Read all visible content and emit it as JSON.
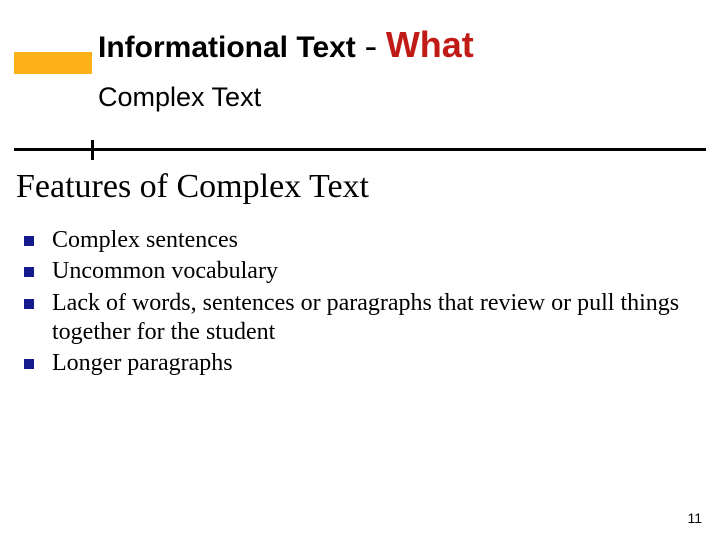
{
  "colors": {
    "accent": "#fbb117",
    "highlight": "#c11b17",
    "bullet": "#151b8d",
    "text": "#000000",
    "background": "#ffffff",
    "divider": "#000000"
  },
  "title": {
    "main": "Informational Text",
    "dash": " - ",
    "highlight": "What",
    "main_fontsize": 30,
    "highlight_fontsize": 36,
    "subtitle": "Complex Text",
    "subtitle_fontsize": 27
  },
  "heading": {
    "text": "Features of Complex Text",
    "fontsize": 34
  },
  "bullets": {
    "marker_size": 10,
    "fontsize": 24,
    "items": [
      "Complex sentences",
      "Uncommon vocabulary",
      "Lack of words, sentences or paragraphs that review or pull things together for the student",
      "Longer paragraphs"
    ]
  },
  "page_number": {
    "text": "11",
    "fontsize": 14
  }
}
